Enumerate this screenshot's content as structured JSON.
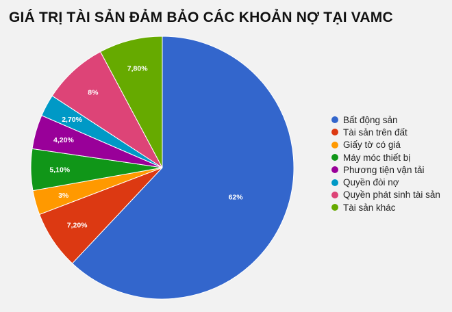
{
  "chart_data": {
    "type": "pie",
    "title": "GIÁ TRỊ TÀI SẢN ĐẢM BẢO CÁC KHOẢN NỢ TẠI VAMC",
    "categories": [
      "Bất động sản",
      "Tài sản trên đất",
      "Giấy tờ có giá",
      "Máy móc thiết bị",
      "Phương tiện vận tải",
      "Quyền đòi nợ",
      "Quyền phát sinh tài sản",
      "Tài sản khác"
    ],
    "values": [
      62,
      7.2,
      3,
      5.1,
      4.2,
      2.7,
      8,
      7.8
    ],
    "data_labels": [
      "62%",
      "7,20%",
      "3%",
      "5,10%",
      "4,20%",
      "2,70%",
      "8%",
      "7,80%"
    ],
    "colors": [
      "#3366cc",
      "#dc3912",
      "#ff9900",
      "#109618",
      "#990099",
      "#0099c6",
      "#dd4477",
      "#66aa00"
    ],
    "legend_position": "right",
    "start": "top, clockwise"
  }
}
